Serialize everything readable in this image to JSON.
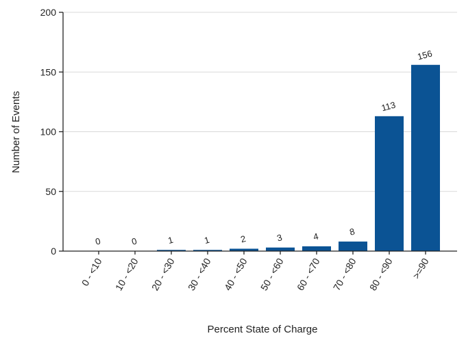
{
  "chart_data": {
    "type": "bar",
    "title": "",
    "xlabel": "Percent State of Charge",
    "ylabel": "Number of Events",
    "categories": [
      "0 - <10",
      "10 - <20",
      "20 - <30",
      "30 - <40",
      "40 - <50",
      "50 - <60",
      "60 - <70",
      "70 - <80",
      "80 - <90",
      ">=90"
    ],
    "values": [
      0,
      0,
      1,
      1,
      2,
      3,
      4,
      8,
      113,
      156
    ],
    "data_labels": [
      "0",
      "0",
      "1",
      "1",
      "2",
      "3",
      "4",
      "8",
      "113",
      "156"
    ],
    "ylim": [
      0,
      200
    ],
    "yticks": [
      0,
      50,
      100,
      150,
      200
    ],
    "ytick_labels": [
      "0",
      "50",
      "100",
      "150",
      "200"
    ],
    "grid": true,
    "legend": "none",
    "colors": {
      "bar": "#0b5394"
    }
  }
}
